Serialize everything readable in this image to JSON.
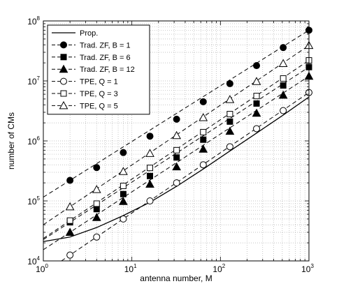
{
  "chart_data": {
    "type": "line",
    "title": "",
    "xlabel": "antenna number, M",
    "ylabel": "number of CMs",
    "xscale": "log",
    "yscale": "log",
    "xlim": [
      1,
      1000
    ],
    "ylim": [
      10000,
      100000000
    ],
    "grid": true,
    "legend_position": "top-left",
    "x_ticks": [
      {
        "base": "10",
        "exp": "0"
      },
      {
        "base": "10",
        "exp": "1"
      },
      {
        "base": "10",
        "exp": "2"
      },
      {
        "base": "10",
        "exp": "3"
      }
    ],
    "y_ticks": [
      {
        "base": "10",
        "exp": "4"
      },
      {
        "base": "10",
        "exp": "5"
      },
      {
        "base": "10",
        "exp": "6"
      },
      {
        "base": "10",
        "exp": "7"
      },
      {
        "base": "10",
        "exp": "8"
      }
    ],
    "series": [
      {
        "name": "Prop.",
        "style": "solid",
        "marker": "none",
        "fill": "none",
        "x": [
          1,
          2,
          4,
          8,
          16,
          32,
          64,
          128,
          256,
          512,
          1000
        ],
        "y": [
          21000,
          25000,
          36000,
          57000,
          95000,
          175000,
          340000,
          680000,
          1350000,
          2700000,
          5400000
        ]
      },
      {
        "name": "Trad. ZF, B = 1",
        "style": "dashed",
        "marker": "circle",
        "fill": "black",
        "x": [
          2,
          4,
          8,
          16,
          32,
          64,
          128,
          256,
          512,
          1000
        ],
        "y": [
          220000,
          360000,
          640000,
          1200000,
          2300000,
          4500000,
          9000000,
          18000000,
          36000000,
          70000000
        ]
      },
      {
        "name": "Trad. ZF, B = 6",
        "style": "dashed",
        "marker": "square",
        "fill": "black",
        "x": [
          2,
          4,
          8,
          16,
          32,
          64,
          128,
          256,
          512,
          1000
        ],
        "y": [
          44000,
          73000,
          130000,
          260000,
          530000,
          1050000,
          2100000,
          4200000,
          8400000,
          17000000
        ]
      },
      {
        "name": "Trad. ZF, B = 12",
        "style": "dashed",
        "marker": "triangle",
        "fill": "black",
        "x": [
          2,
          4,
          8,
          16,
          32,
          64,
          128,
          256,
          512,
          1000
        ],
        "y": [
          30000,
          53000,
          98000,
          190000,
          370000,
          730000,
          1450000,
          2900000,
          5800000,
          12000000
        ]
      },
      {
        "name": "TPE, Q = 1",
        "style": "dashed",
        "marker": "circle",
        "fill": "white",
        "x": [
          2,
          4,
          8,
          16,
          32,
          64,
          128,
          256,
          512,
          1000
        ],
        "y": [
          12500,
          25000,
          50000,
          100000,
          200000,
          400000,
          800000,
          1600000,
          3200000,
          6400000
        ]
      },
      {
        "name": "TPE, Q = 3",
        "style": "dashed",
        "marker": "square",
        "fill": "white",
        "x": [
          2,
          4,
          8,
          16,
          32,
          64,
          128,
          256,
          512,
          1000
        ],
        "y": [
          47000,
          90000,
          178000,
          355000,
          700000,
          1400000,
          2800000,
          5600000,
          11000000,
          22000000
        ]
      },
      {
        "name": "TPE, Q = 5",
        "style": "dashed",
        "marker": "triangle",
        "fill": "white",
        "x": [
          2,
          4,
          8,
          16,
          32,
          64,
          128,
          256,
          512,
          1000
        ],
        "y": [
          80000,
          155000,
          310000,
          620000,
          1230000,
          2450000,
          4900000,
          9800000,
          19500000,
          39000000
        ]
      }
    ]
  }
}
